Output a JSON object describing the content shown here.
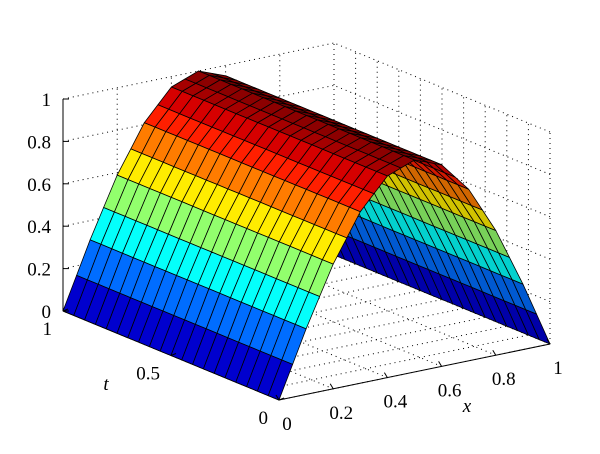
{
  "chart_data": {
    "type": "surface",
    "function": "u(x,t) = sin(pi*x)",
    "title": "",
    "xlabel": "x",
    "ylabel": "t",
    "zlabel": "",
    "xlim": [
      0,
      1
    ],
    "ylim": [
      0,
      1
    ],
    "zlim": [
      0,
      1
    ],
    "x_ticks": [
      "0",
      "0.2",
      "0.4",
      "0.6",
      "0.8",
      "1"
    ],
    "y_ticks": [
      "0",
      "0.5",
      "1"
    ],
    "z_ticks": [
      "0",
      "0.2",
      "0.4",
      "0.6",
      "0.8",
      "1"
    ],
    "grid": true,
    "colormap": "jet",
    "mesh": {
      "x_count": 21,
      "t_count": 21
    },
    "z_at_x": {
      "x": [
        0,
        0.1,
        0.2,
        0.3,
        0.4,
        0.5,
        0.6,
        0.7,
        0.8,
        0.9,
        1.0
      ],
      "z": [
        0,
        0.309,
        0.588,
        0.809,
        0.951,
        1.0,
        0.951,
        0.809,
        0.588,
        0.309,
        0
      ]
    }
  }
}
